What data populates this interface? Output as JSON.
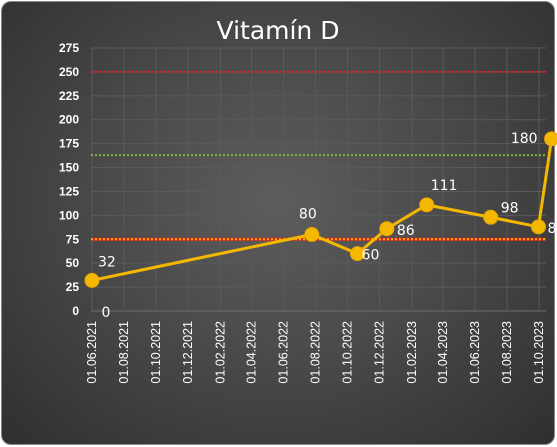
{
  "chart_data": {
    "type": "line",
    "title": "Vitamín D",
    "xlabel": "",
    "ylabel": "",
    "ylim": [
      0,
      275
    ],
    "y_ticks": [
      "0",
      "25",
      "50",
      "75",
      "100",
      "125",
      "150",
      "175",
      "200",
      "225",
      "250",
      "275"
    ],
    "x_ticks": [
      "01.06.2021",
      "01.08.2021",
      "01.10.2021",
      "01.12.2021",
      "01.02.2022",
      "01.04.2022",
      "01.06.2022",
      "01.08.2022",
      "01.10.2022",
      "01.12.2022",
      "01.02.2023",
      "01.04.2023",
      "01.06.2023",
      "01.08.2023",
      "01.10.2023"
    ],
    "grid": true,
    "legend": "none",
    "series": [
      {
        "color": "#f5b800",
        "points": [
          {
            "x": "2021-06-01",
            "y": 32,
            "label": "32"
          },
          {
            "x": "2022-07-25",
            "y": 80,
            "label": "80"
          },
          {
            "x": "2022-10-20",
            "y": 60,
            "label": "60"
          },
          {
            "x": "2022-12-15",
            "y": 86,
            "label": "86"
          },
          {
            "x": "2023-03-01",
            "y": 111,
            "label": "111"
          },
          {
            "x": "2023-07-01",
            "y": 98,
            "label": "98"
          },
          {
            "x": "2023-09-30",
            "y": 88,
            "label": "88"
          },
          {
            "x": "2023-10-25",
            "y": 180,
            "label": "180"
          }
        ]
      }
    ],
    "extra_labels": [
      {
        "text": "0"
      }
    ],
    "reference_lines": [
      {
        "y": 250,
        "color": "#e0201a",
        "style": "dotted"
      },
      {
        "y": 163,
        "color": "#7ab648",
        "style": "dotted"
      },
      {
        "y": 75,
        "color": "#e0201a",
        "style": "solid"
      },
      {
        "y": 75,
        "color": "#f5b800",
        "style": "dotted"
      }
    ]
  }
}
